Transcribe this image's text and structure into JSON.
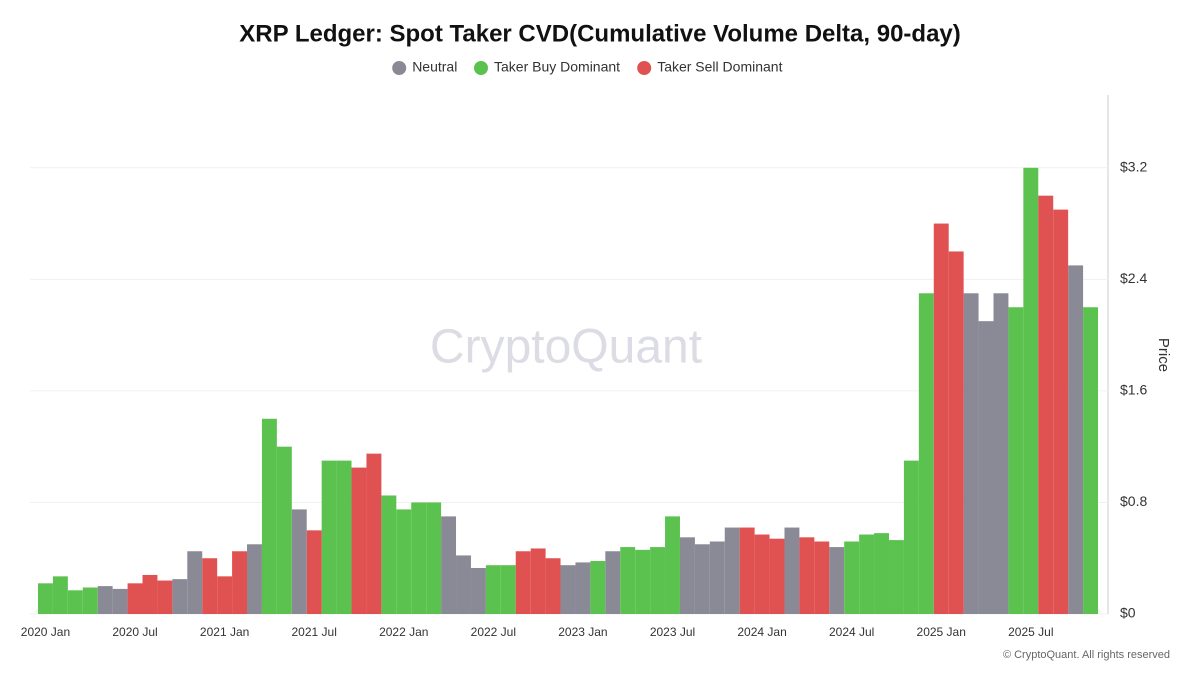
{
  "chart_data": {
    "type": "bar",
    "title": "XRP Ledger: Spot Taker CVD(Cumulative Volume Delta, 90-day)",
    "y_axis_label": "Price",
    "watermark": "CryptoQuant",
    "footer": "© CryptoQuant. All rights reserved",
    "categories": [
      "2020 Jan",
      null,
      null,
      null,
      null,
      null,
      "2020 Jul",
      null,
      null,
      null,
      null,
      null,
      "2021 Jan",
      null,
      null,
      null,
      null,
      null,
      "2021 Jul",
      null,
      null,
      null,
      null,
      null,
      "2022 Jan",
      null,
      null,
      null,
      null,
      null,
      "2022 Jul",
      null,
      null,
      null,
      null,
      null,
      "2023 Jan",
      null,
      null,
      null,
      null,
      null,
      "2023 Jul",
      null,
      null,
      null,
      null,
      null,
      "2024 Jan",
      null,
      null,
      null,
      null,
      null,
      "2024 Jul",
      null,
      null,
      null,
      null,
      null,
      "2025 Jan",
      null,
      null,
      null,
      null,
      null,
      "2025 Jul",
      null,
      null,
      null,
      null
    ],
    "series": [
      {
        "name": "Neutral",
        "color": "#8a8a96",
        "values": [
          null,
          null,
          null,
          null,
          0.2,
          0.18,
          null,
          null,
          null,
          0.25,
          0.45,
          null,
          null,
          null,
          0.5,
          null,
          null,
          0.75,
          null,
          null,
          null,
          null,
          null,
          null,
          null,
          null,
          null,
          0.7,
          0.42,
          0.33,
          null,
          null,
          null,
          null,
          null,
          0.35,
          0.37,
          null,
          0.45,
          null,
          null,
          null,
          null,
          0.55,
          0.5,
          0.52,
          0.62,
          null,
          null,
          null,
          0.62,
          null,
          null,
          0.48,
          null,
          null,
          null,
          null,
          null,
          null,
          null,
          null,
          2.3,
          2.1,
          2.3,
          null,
          null,
          null,
          null,
          2.5,
          null
        ]
      },
      {
        "name": "Taker Buy Dominant",
        "color": "#5cc24f",
        "values": [
          0.22,
          0.27,
          0.17,
          0.19,
          null,
          null,
          null,
          null,
          null,
          null,
          null,
          null,
          null,
          null,
          null,
          1.4,
          1.2,
          null,
          null,
          1.1,
          1.1,
          null,
          null,
          0.85,
          0.75,
          0.8,
          0.8,
          null,
          null,
          null,
          0.35,
          0.35,
          null,
          null,
          null,
          null,
          null,
          0.38,
          null,
          0.48,
          0.46,
          0.48,
          0.7,
          null,
          null,
          null,
          null,
          null,
          null,
          null,
          null,
          null,
          null,
          null,
          0.52,
          0.57,
          0.58,
          0.53,
          1.1,
          2.3,
          null,
          null,
          null,
          null,
          null,
          2.2,
          3.2,
          null,
          null,
          null,
          2.2
        ]
      },
      {
        "name": "Taker Sell Dominant",
        "color": "#e05252",
        "values": [
          null,
          null,
          null,
          null,
          null,
          null,
          0.22,
          0.28,
          0.24,
          null,
          null,
          0.4,
          0.27,
          0.45,
          null,
          null,
          null,
          null,
          0.6,
          null,
          null,
          1.05,
          1.15,
          null,
          null,
          null,
          null,
          null,
          null,
          null,
          null,
          null,
          0.45,
          0.47,
          0.4,
          null,
          null,
          null,
          null,
          null,
          null,
          null,
          null,
          null,
          null,
          null,
          null,
          0.62,
          0.57,
          0.54,
          null,
          0.55,
          0.52,
          null,
          null,
          null,
          null,
          null,
          null,
          null,
          2.8,
          2.6,
          null,
          null,
          null,
          null,
          null,
          3.0,
          2.9,
          null,
          null
        ]
      }
    ],
    "ylim": [
      0,
      3.6
    ],
    "yticks": [
      {
        "value": 0,
        "label": "$0"
      },
      {
        "value": 0.8,
        "label": "$0.8"
      },
      {
        "value": 1.6,
        "label": "$1.6"
      },
      {
        "value": 2.4,
        "label": "$2.4"
      },
      {
        "value": 3.2,
        "label": "$3.2"
      }
    ],
    "grid": true
  }
}
